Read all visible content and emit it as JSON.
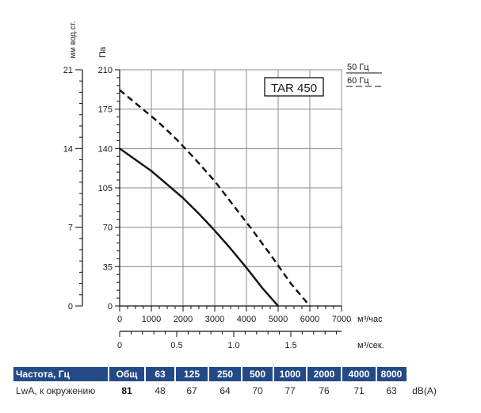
{
  "chart_data": {
    "type": "line",
    "title": "TAR 450",
    "xlabel": "м³/час",
    "xlim": [
      0,
      7000
    ],
    "x_ticks": [
      "0",
      "1000",
      "2000",
      "3000",
      "4000",
      "5000",
      "6000",
      "7000"
    ],
    "x2label": "м³/сек.",
    "x2_ticks": [
      "0",
      "0.5",
      "1.0",
      "1.5"
    ],
    "x2_tick_values": [
      0,
      0.5,
      1.0,
      1.5
    ],
    "ylabel": "Па",
    "ylim": [
      0,
      210
    ],
    "y_ticks": [
      "0",
      "35",
      "70",
      "105",
      "140",
      "175",
      "210"
    ],
    "y2label": "мм вод.ст.",
    "y2lim": [
      0,
      21
    ],
    "y2_ticks": [
      "0",
      "7",
      "14",
      "21"
    ],
    "y2_tick_values": [
      0,
      7,
      14,
      21
    ],
    "legend": [
      {
        "label": "50 Гц",
        "style": "solid"
      },
      {
        "label": "60 Гц",
        "style": "dashed"
      }
    ],
    "series": [
      {
        "name": "50 Гц",
        "style": "solid",
        "x": [
          0,
          500,
          1000,
          1500,
          2000,
          2500,
          3000,
          3500,
          4000,
          4500,
          5000
        ],
        "y": [
          140,
          130,
          120,
          108,
          96,
          82,
          67,
          51,
          34,
          16,
          0
        ]
      },
      {
        "name": "60 Гц",
        "style": "dashed",
        "x": [
          0,
          600,
          1200,
          1800,
          2400,
          3000,
          3600,
          4200,
          4800,
          5400,
          6000
        ],
        "y": [
          192,
          178,
          164,
          148,
          130,
          111,
          89,
          67,
          44,
          20,
          0
        ]
      }
    ]
  },
  "sound_table": {
    "headers": [
      "Частота, Гц",
      "Общ",
      "63",
      "125",
      "250",
      "500",
      "1000",
      "2000",
      "4000",
      "8000"
    ],
    "row_label": "LwA, к окружению",
    "values": [
      "81",
      "48",
      "67",
      "64",
      "70",
      "77",
      "76",
      "71",
      "63"
    ],
    "unit": "dB(A)"
  },
  "colors": {
    "table_header_bg": "#234a86",
    "table_header_text": "#ffffff",
    "line": "#111111"
  }
}
